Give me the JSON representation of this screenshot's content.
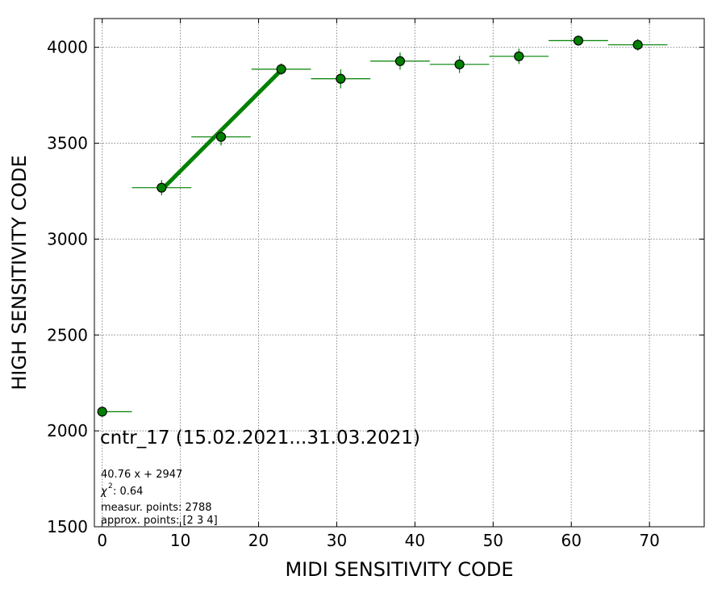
{
  "chart_data": {
    "type": "scatter",
    "xlabel": "MIDI SENSITIVITY CODE",
    "ylabel": "HIGH SENSITIVITY CODE",
    "xlim": [
      -1,
      77
    ],
    "ylim": [
      1500,
      4150
    ],
    "x_ticks": [
      0,
      10,
      20,
      30,
      40,
      50,
      60,
      70
    ],
    "y_ticks": [
      1500,
      2000,
      2500,
      3000,
      3500,
      4000
    ],
    "grid": true,
    "color": "#008000",
    "series": [
      {
        "points": [
          {
            "x": 0.0,
            "y": 2100,
            "xerr": [
              0.0,
              3.8
            ],
            "yerr": 0
          },
          {
            "x": 7.6,
            "y": 3268,
            "xerr": [
              3.8,
              3.8
            ],
            "yerr": 40
          },
          {
            "x": 15.2,
            "y": 3533,
            "xerr": [
              3.8,
              3.8
            ],
            "yerr": 45
          },
          {
            "x": 22.9,
            "y": 3886,
            "xerr": [
              3.8,
              3.8
            ],
            "yerr": 30
          },
          {
            "x": 30.5,
            "y": 3836,
            "xerr": [
              3.8,
              3.8
            ],
            "yerr": 50
          },
          {
            "x": 38.1,
            "y": 3928,
            "xerr": [
              3.8,
              3.8
            ],
            "yerr": 45
          },
          {
            "x": 45.7,
            "y": 3911,
            "xerr": [
              3.8,
              3.8
            ],
            "yerr": 45
          },
          {
            "x": 53.3,
            "y": 3953,
            "xerr": [
              3.8,
              3.8
            ],
            "yerr": 40
          },
          {
            "x": 60.9,
            "y": 4035,
            "xerr": [
              3.8,
              3.8
            ],
            "yerr": 25
          },
          {
            "x": 68.5,
            "y": 4013,
            "xerr": [
              3.8,
              3.8
            ],
            "yerr": 30
          }
        ]
      }
    ],
    "fit_line": {
      "x": [
        7.6,
        22.9
      ],
      "y": [
        3257,
        3881
      ]
    },
    "annotations": {
      "title": "cntr_17 (15.02.2021...31.03.2021)",
      "fit": "40.76 x + 2947",
      "chi2_value": ": 0.64",
      "measur_points": "measur. points: 2788",
      "approx_points": "approx. points: [2 3 4]"
    }
  }
}
